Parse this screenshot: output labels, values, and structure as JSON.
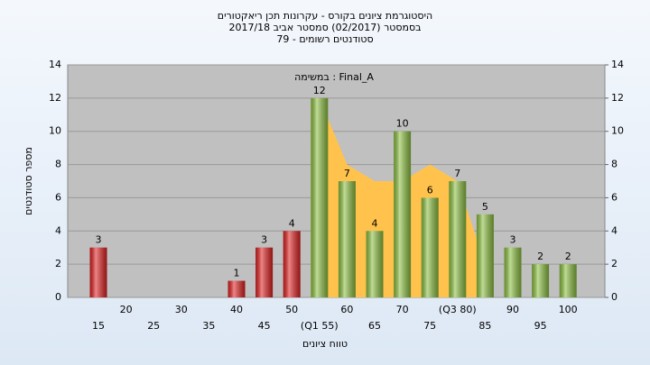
{
  "chart_data": {
    "type": "bar",
    "title": "היסטוגרמת ציונים בקורס - עקרונות תכן ריאקטורים",
    "subtitle": "בסמסטר  (02/2017)  סמסטר אביב 2017/18",
    "subtitle2": "סטודנטים רשומים - 79",
    "annotation": "במשימה : Final_A",
    "x_label": "טווח ציונים",
    "y_label": "מספר סטודנטים",
    "categories": [
      "15",
      "20",
      "25",
      "30",
      "35",
      "40",
      "45",
      "50",
      "(Q1 55)",
      "60",
      "65",
      "70",
      "75",
      "(Q3 80)",
      "85",
      "90",
      "95",
      "100"
    ],
    "values": [
      3,
      0,
      0,
      0,
      0,
      1,
      3,
      4,
      12,
      7,
      4,
      10,
      6,
      7,
      5,
      3,
      2,
      2
    ],
    "colors": [
      "#e02020",
      "#e02020",
      "#e02020",
      "#e02020",
      "#e02020",
      "#e02020",
      "#e02020",
      "#e02020",
      "#8cc040",
      "#8cc040",
      "#8cc040",
      "#8cc040",
      "#8cc040",
      "#8cc040",
      "#8cc040",
      "#8cc040",
      "#8cc040",
      "#8cc040"
    ],
    "band": {
      "color": "#ffc34d",
      "values": [
        null,
        null,
        null,
        null,
        null,
        null,
        null,
        null,
        12,
        8,
        7,
        7,
        8,
        7,
        2,
        null,
        null,
        null
      ]
    },
    "ylim": [
      0,
      14
    ],
    "yticks": [
      0,
      2,
      4,
      6,
      8,
      10,
      12,
      14
    ],
    "y2lim": [
      0,
      14
    ],
    "y2ticks": [
      0,
      2,
      4,
      6,
      8,
      10,
      12,
      14
    ],
    "grid": true
  }
}
